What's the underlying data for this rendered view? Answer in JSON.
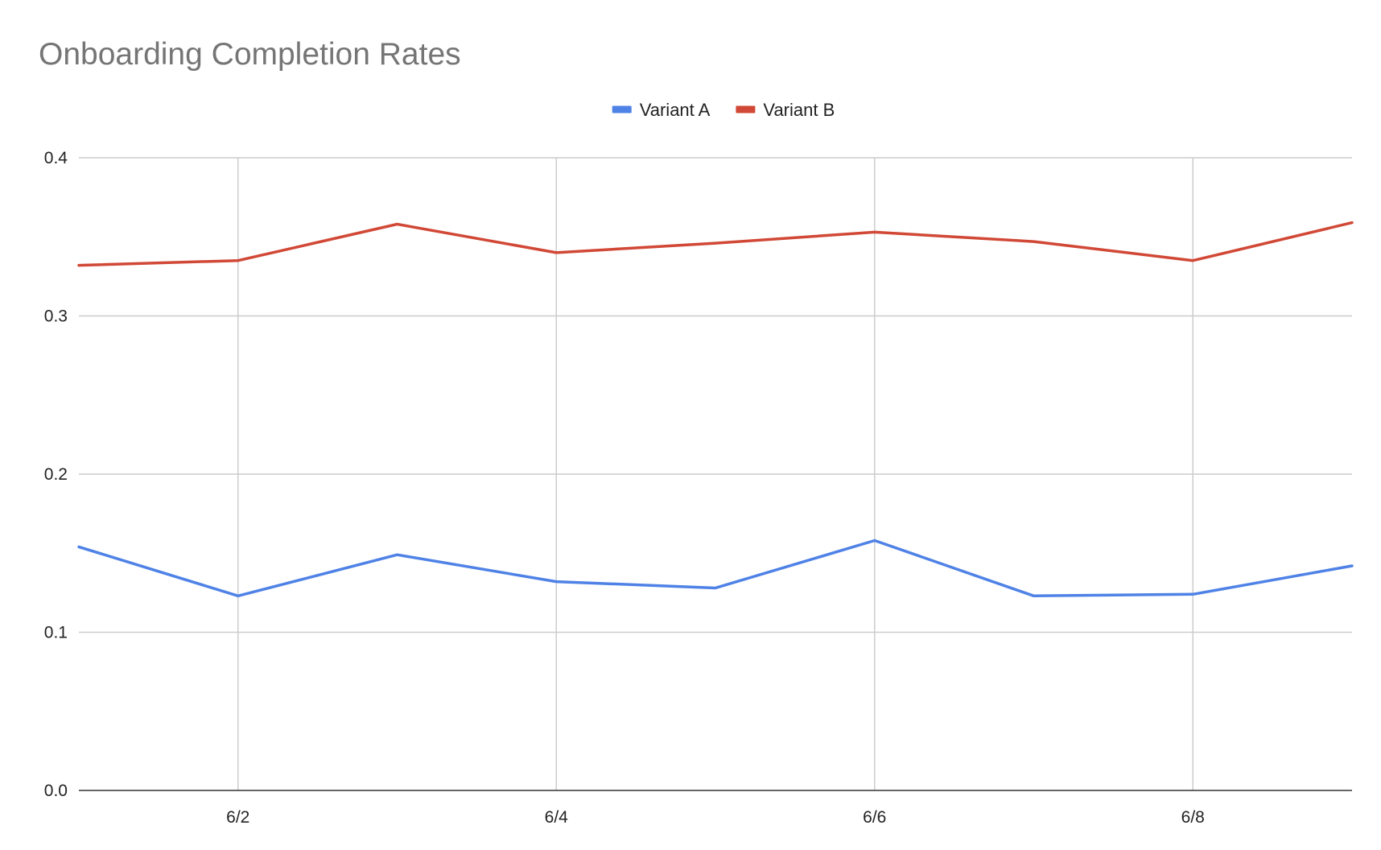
{
  "chart_data": {
    "type": "line",
    "title": "Onboarding Completion Rates",
    "xlabel": "",
    "ylabel": "",
    "x": [
      "6/1",
      "6/2",
      "6/3",
      "6/4",
      "6/5",
      "6/6",
      "6/7",
      "6/8",
      "6/9"
    ],
    "x_tick_labels": [
      "6/2",
      "6/4",
      "6/6",
      "6/8"
    ],
    "y_tick_labels": [
      "0.0",
      "0.1",
      "0.2",
      "0.3",
      "0.4"
    ],
    "ylim": [
      0,
      0.4
    ],
    "grid": true,
    "legend_position": "top-center",
    "series": [
      {
        "name": "Variant A",
        "color": "#4f82e6",
        "values": [
          0.154,
          0.123,
          0.149,
          0.132,
          0.128,
          0.158,
          0.123,
          0.124,
          0.142
        ]
      },
      {
        "name": "Variant B",
        "color": "#d14836",
        "values": [
          0.332,
          0.335,
          0.358,
          0.34,
          0.346,
          0.353,
          0.347,
          0.335,
          0.359
        ]
      }
    ]
  }
}
